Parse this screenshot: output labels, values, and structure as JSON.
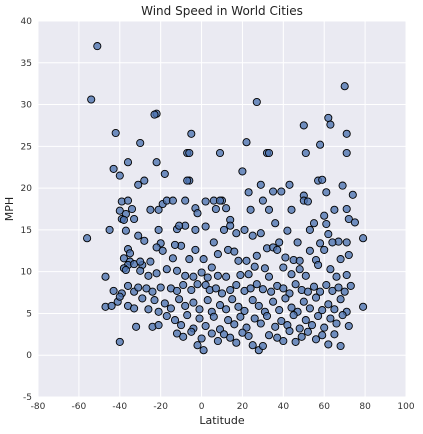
{
  "chart_data": {
    "type": "scatter",
    "title": "Wind Speed in World Cities",
    "xlabel": "Latitude",
    "ylabel": "MPH",
    "xlim": [
      -80,
      100
    ],
    "ylim": [
      -5,
      40
    ],
    "xticks": [
      -80,
      -60,
      -40,
      -20,
      0,
      20,
      40,
      60,
      80,
      100
    ],
    "yticks": [
      -5,
      0,
      5,
      10,
      15,
      20,
      25,
      30,
      35,
      40
    ],
    "grid": true,
    "colors": {
      "background": "#eaeaf2",
      "grid": "#ffffff",
      "marker_fill": "#4c72b0",
      "marker_edge": "#000000"
    },
    "points": [
      [
        -51,
        37
      ],
      [
        -54,
        30.6
      ],
      [
        -42,
        26.6
      ],
      [
        -22,
        28.9
      ],
      [
        -23,
        28.8
      ],
      [
        27,
        30.3
      ],
      [
        70,
        32.2
      ],
      [
        62,
        28.4
      ],
      [
        63,
        27.6
      ],
      [
        50,
        27.5
      ],
      [
        71,
        26.5
      ],
      [
        -30,
        25.4
      ],
      [
        -5,
        26.5
      ],
      [
        -36,
        23.1
      ],
      [
        -22,
        23.1
      ],
      [
        -7,
        24.2
      ],
      [
        -6,
        24.2
      ],
      [
        9,
        24.2
      ],
      [
        22,
        25.5
      ],
      [
        32,
        24.2
      ],
      [
        33,
        24.2
      ],
      [
        51,
        24.2
      ],
      [
        58,
        25.2
      ],
      [
        71,
        24.2
      ],
      [
        -43,
        22.3
      ],
      [
        -28,
        20.9
      ],
      [
        -31,
        20.4
      ],
      [
        -6,
        20.9
      ],
      [
        -7,
        20.9
      ],
      [
        20,
        22
      ],
      [
        29,
        20.4
      ],
      [
        43,
        20.4
      ],
      [
        57,
        20.9
      ],
      [
        59,
        21
      ],
      [
        -40,
        21.5
      ],
      [
        -18,
        21.7
      ],
      [
        10,
        18.5
      ],
      [
        23,
        19.5
      ],
      [
        35,
        19.6
      ],
      [
        39,
        19.6
      ],
      [
        50,
        19.1
      ],
      [
        61,
        19.5
      ],
      [
        69,
        20.3
      ],
      [
        74,
        19.2
      ],
      [
        -56,
        14
      ],
      [
        -39,
        18.4
      ],
      [
        -36,
        18.5
      ],
      [
        -40,
        17.3
      ],
      [
        -37,
        16.9
      ],
      [
        -34,
        17.5
      ],
      [
        -39,
        16.3
      ],
      [
        -38,
        16.2
      ],
      [
        -33,
        16.3
      ],
      [
        -25,
        17.4
      ],
      [
        -21,
        17.4
      ],
      [
        -19,
        18.1
      ],
      [
        -17,
        18.5
      ],
      [
        -14,
        18.5
      ],
      [
        -8,
        18.5
      ],
      [
        -3,
        17.6
      ],
      [
        -2,
        17
      ],
      [
        2,
        18.4
      ],
      [
        7,
        17.5
      ],
      [
        6,
        18.5
      ],
      [
        9,
        18.5
      ],
      [
        14,
        16.2
      ],
      [
        14,
        15.5
      ],
      [
        12,
        17.6
      ],
      [
        24,
        17.4
      ],
      [
        30,
        18.5
      ],
      [
        33,
        17.4
      ],
      [
        36,
        15.8
      ],
      [
        44,
        17.4
      ],
      [
        50,
        18.5
      ],
      [
        52,
        18.4
      ],
      [
        55,
        15.8
      ],
      [
        60,
        16.7
      ],
      [
        61,
        15.7
      ],
      [
        65,
        17.4
      ],
      [
        71,
        17.5
      ],
      [
        72,
        16.3
      ],
      [
        75,
        15.9
      ],
      [
        -45,
        15
      ],
      [
        -37,
        14.9
      ],
      [
        -31,
        14.3
      ],
      [
        -28,
        13.7
      ],
      [
        -21,
        15
      ],
      [
        -20,
        13.4
      ],
      [
        -12,
        15.1
      ],
      [
        -8,
        15.5
      ],
      [
        -3,
        15
      ],
      [
        2,
        15.4
      ],
      [
        6,
        13.5
      ],
      [
        11,
        15
      ],
      [
        17,
        14.6
      ],
      [
        21,
        15
      ],
      [
        25,
        14.3
      ],
      [
        29,
        14.6
      ],
      [
        38,
        13.5
      ],
      [
        42,
        14.9
      ],
      [
        47,
        13.5
      ],
      [
        53,
        15
      ],
      [
        58,
        13.4
      ],
      [
        62,
        14.5
      ],
      [
        67,
        13.6
      ],
      [
        71,
        13.5
      ],
      [
        79,
        14
      ],
      [
        -36,
        12.7
      ],
      [
        -35,
        12.2
      ],
      [
        -38,
        11.6
      ],
      [
        -35,
        11.2
      ],
      [
        -36,
        10.8
      ],
      [
        -38,
        10.4
      ],
      [
        -37,
        10.2
      ],
      [
        -33,
        10.9
      ],
      [
        -29,
        10.8
      ],
      [
        -25,
        11.2
      ],
      [
        -22,
        12.9
      ],
      [
        -19,
        12.5
      ],
      [
        -14,
        11.6
      ],
      [
        -10,
        13.1
      ],
      [
        -6,
        11.5
      ],
      [
        -3,
        12.6
      ],
      [
        1,
        11.5
      ],
      [
        5,
        10.5
      ],
      [
        8,
        12.1
      ],
      [
        13,
        12.6
      ],
      [
        16,
        12.4
      ],
      [
        18,
        11.3
      ],
      [
        22,
        11.3
      ],
      [
        27,
        11.9
      ],
      [
        32,
        12.8
      ],
      [
        35,
        12.9
      ],
      [
        37,
        12.6
      ],
      [
        41,
        11.7
      ],
      [
        45,
        11.4
      ],
      [
        48,
        11.3
      ],
      [
        53,
        12.5
      ],
      [
        56,
        11.4
      ],
      [
        60,
        12.6
      ],
      [
        64,
        13.5
      ],
      [
        68,
        11.5
      ],
      [
        72,
        12
      ],
      [
        -30,
        10.1
      ],
      [
        -26,
        9.5
      ],
      [
        -22,
        9.8
      ],
      [
        -17,
        10.3
      ],
      [
        -12,
        10.1
      ],
      [
        -8,
        9.5
      ],
      [
        -4,
        9.4
      ],
      [
        0,
        9.9
      ],
      [
        3,
        9.3
      ],
      [
        8,
        9.5
      ],
      [
        12,
        9.4
      ],
      [
        19,
        9.6
      ],
      [
        23,
        9.7
      ],
      [
        26,
        10.6
      ],
      [
        31,
        10.4
      ],
      [
        33,
        9.4
      ],
      [
        40,
        10.5
      ],
      [
        44,
        9.7
      ],
      [
        48,
        10.3
      ],
      [
        51,
        9.5
      ],
      [
        57,
        10.8
      ],
      [
        63,
        10.3
      ],
      [
        66,
        9.4
      ],
      [
        71,
        9.6
      ],
      [
        -47,
        9.4
      ],
      [
        -43,
        7.7
      ],
      [
        -41,
        6.4
      ],
      [
        -39,
        7.4
      ],
      [
        -36,
        8.3
      ],
      [
        -33,
        7.6
      ],
      [
        -31,
        8.1
      ],
      [
        -27,
        8
      ],
      [
        -24,
        7.6
      ],
      [
        -20,
        8.1
      ],
      [
        -15,
        8
      ],
      [
        -12,
        7.7
      ],
      [
        -9,
        8.4
      ],
      [
        -5,
        7.8
      ],
      [
        -2,
        8.5
      ],
      [
        2,
        8.4
      ],
      [
        4,
        7.8
      ],
      [
        7,
        8
      ],
      [
        10,
        7.4
      ],
      [
        14,
        7.8
      ],
      [
        17,
        8.4
      ],
      [
        21,
        7.7
      ],
      [
        24,
        8
      ],
      [
        27,
        8.5
      ],
      [
        30,
        7.9
      ],
      [
        34,
        7.6
      ],
      [
        37,
        8.3
      ],
      [
        40,
        8
      ],
      [
        43,
        7.4
      ],
      [
        46,
        8.5
      ],
      [
        49,
        7.8
      ],
      [
        52,
        7.6
      ],
      [
        55,
        8.2
      ],
      [
        58,
        7.6
      ],
      [
        61,
        8.4
      ],
      [
        64,
        7.7
      ],
      [
        67,
        8.1
      ],
      [
        70,
        7.6
      ],
      [
        73,
        8.3
      ],
      [
        -47,
        5.8
      ],
      [
        -44,
        5.9
      ],
      [
        -40,
        1.6
      ],
      [
        -40,
        7
      ],
      [
        -36,
        5.9
      ],
      [
        -33,
        5.6
      ],
      [
        -29,
        6.8
      ],
      [
        -26,
        5.5
      ],
      [
        -23,
        6.6
      ],
      [
        -21,
        5.2
      ],
      [
        -18,
        6.2
      ],
      [
        -15,
        5.6
      ],
      [
        -11,
        6.7
      ],
      [
        -8,
        5.9
      ],
      [
        -4,
        6.3
      ],
      [
        -1,
        5.5
      ],
      [
        3,
        6.6
      ],
      [
        5,
        5.2
      ],
      [
        9,
        6
      ],
      [
        12,
        5.5
      ],
      [
        15,
        6.7
      ],
      [
        18,
        5.8
      ],
      [
        21,
        5.3
      ],
      [
        25,
        6.6
      ],
      [
        28,
        5.9
      ],
      [
        31,
        5.2
      ],
      [
        35,
        6.4
      ],
      [
        38,
        5.4
      ],
      [
        41,
        6.8
      ],
      [
        44,
        5.7
      ],
      [
        47,
        5.2
      ],
      [
        50,
        6.4
      ],
      [
        53,
        5.6
      ],
      [
        56,
        6.9
      ],
      [
        59,
        5.4
      ],
      [
        62,
        6.1
      ],
      [
        65,
        5.5
      ],
      [
        68,
        6.7
      ],
      [
        71,
        5.2
      ],
      [
        79,
        5.8
      ],
      [
        -24,
        3.4
      ],
      [
        -21,
        3.6
      ],
      [
        -17,
        4.7
      ],
      [
        -13,
        4.2
      ],
      [
        -10,
        3.6
      ],
      [
        -7,
        4.8
      ],
      [
        -4,
        3.2
      ],
      [
        -1,
        4.4
      ],
      [
        2,
        3.5
      ],
      [
        6,
        4.6
      ],
      [
        9,
        3.1
      ],
      [
        13,
        4.2
      ],
      [
        16,
        3.7
      ],
      [
        19,
        4.6
      ],
      [
        22,
        3.3
      ],
      [
        26,
        4.4
      ],
      [
        29,
        3.8
      ],
      [
        32,
        4.7
      ],
      [
        36,
        3.4
      ],
      [
        39,
        4.1
      ],
      [
        42,
        3.6
      ],
      [
        45,
        4.8
      ],
      [
        48,
        3.2
      ],
      [
        51,
        4.2
      ],
      [
        54,
        3.6
      ],
      [
        57,
        4.7
      ],
      [
        60,
        3.3
      ],
      [
        63,
        4.4
      ],
      [
        66,
        3.8
      ],
      [
        69,
        4.8
      ],
      [
        72,
        3.5
      ],
      [
        -12,
        2.6
      ],
      [
        -9,
        2.2
      ],
      [
        -5,
        2.8
      ],
      [
        -2,
        1.2
      ],
      [
        0,
        2
      ],
      [
        1,
        0.6
      ],
      [
        5,
        2.6
      ],
      [
        8,
        1.7
      ],
      [
        11,
        2.5
      ],
      [
        14,
        2.1
      ],
      [
        17,
        1.5
      ],
      [
        20,
        2.7
      ],
      [
        23,
        2.3
      ],
      [
        25,
        1.2
      ],
      [
        28,
        0.6
      ],
      [
        30,
        1.1
      ],
      [
        33,
        2.4
      ],
      [
        37,
        2.1
      ],
      [
        40,
        1.7
      ],
      [
        43,
        2.9
      ],
      [
        46,
        1.6
      ],
      [
        49,
        2.2
      ],
      [
        52,
        2.8
      ],
      [
        56,
        1.9
      ],
      [
        59,
        2.4
      ],
      [
        62,
        1.3
      ],
      [
        65,
        2.5
      ],
      [
        68,
        1.1
      ],
      [
        -11,
        15.5
      ],
      [
        -32,
        3.4
      ],
      [
        -13,
        13.2
      ],
      [
        -30,
        11.2
      ]
    ]
  }
}
